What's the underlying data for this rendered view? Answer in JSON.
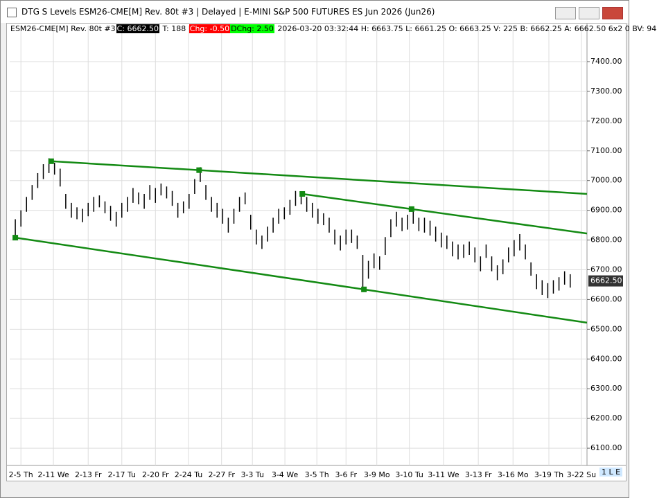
{
  "window": {
    "title": "DTG S Levels ESM26-CME[M]  Rev. 80t #3 | Delayed | E-MINI S&P 500 FUTURES ES Jun 2026 (Jun26)"
  },
  "info": {
    "instrument": "ESM26-CME[M]  Rev. 80t #3",
    "close": "C: 6662.50",
    "ticks": "T: 188",
    "change": "Chg: -0.50",
    "daily_change": "DChg: 2.50",
    "details": "2026-03-20 03:32:44 H: 6663.75 L: 6661.25 O: 6663.25 V: 225 B: 6662.25 A: 6662.50 6x2 0 BV: 94"
  },
  "status": "1 L E",
  "chart_data": {
    "type": "ohlc",
    "color": "#000000",
    "grid": true,
    "xlim": [
      -1,
      102
    ],
    "ylim": [
      6042,
      7521
    ],
    "yticks": [
      {
        "value": 6100,
        "label": "6100.00"
      },
      {
        "value": 6200,
        "label": "6200.00"
      },
      {
        "value": 6300,
        "label": "6300.00"
      },
      {
        "value": 6400,
        "label": "6400.00"
      },
      {
        "value": 6500,
        "label": "6500.00"
      },
      {
        "value": 6600,
        "label": "6600.00"
      },
      {
        "value": 6700,
        "label": "6700.00"
      },
      {
        "value": 6800,
        "label": "6800.00"
      },
      {
        "value": 6900,
        "label": "6900.00"
      },
      {
        "value": 7000,
        "label": "7000.00"
      },
      {
        "value": 7100,
        "label": "7100.00"
      },
      {
        "value": 7200,
        "label": "7200.00"
      },
      {
        "value": 7300,
        "label": "7300.00"
      },
      {
        "value": 7400,
        "label": "7400.00"
      }
    ],
    "xticks": [
      {
        "value": 1,
        "label": "2-5 Th"
      },
      {
        "value": 6.8,
        "label": "2-11 We"
      },
      {
        "value": 13,
        "label": "2-13 Fr"
      },
      {
        "value": 19,
        "label": "2-17 Tu"
      },
      {
        "value": 25,
        "label": "2-20 Fr"
      },
      {
        "value": 30.9,
        "label": "2-24 Tu"
      },
      {
        "value": 36.8,
        "label": "2-27 Fr"
      },
      {
        "value": 42.3,
        "label": "3-3 Tu"
      },
      {
        "value": 48.1,
        "label": "3-4 We"
      },
      {
        "value": 53.8,
        "label": "3-5 Th"
      },
      {
        "value": 59,
        "label": "3-6 Fr"
      },
      {
        "value": 64.5,
        "label": "3-9 Mo"
      },
      {
        "value": 70.3,
        "label": "3-10 Tu"
      },
      {
        "value": 76.4,
        "label": "3-11 We"
      },
      {
        "value": 82.6,
        "label": "3-13 Fr"
      },
      {
        "value": 88.8,
        "label": "3-16 Mo"
      },
      {
        "value": 95.2,
        "label": "3-19 Th"
      },
      {
        "value": 101,
        "label": "3-22 Su"
      }
    ],
    "high": [
      6870,
      6900,
      6945,
      6985,
      7025,
      7055,
      7075,
      7060,
      7040,
      6955,
      6925,
      6910,
      6905,
      6925,
      6945,
      6950,
      6930,
      6915,
      6895,
      6925,
      6945,
      6975,
      6960,
      6955,
      6985,
      6975,
      6990,
      6980,
      6965,
      6925,
      6930,
      6955,
      7005,
      7045,
      6985,
      6945,
      6925,
      6905,
      6875,
      6905,
      6945,
      6960,
      6885,
      6835,
      6815,
      6845,
      6875,
      6905,
      6910,
      6935,
      6965,
      6960,
      6945,
      6925,
      6905,
      6890,
      6875,
      6835,
      6815,
      6835,
      6835,
      6815,
      6750,
      6730,
      6755,
      6745,
      6810,
      6870,
      6895,
      6875,
      6885,
      6905,
      6875,
      6875,
      6865,
      6845,
      6825,
      6815,
      6795,
      6785,
      6785,
      6795,
      6775,
      6745,
      6785,
      6745,
      6715,
      6735,
      6775,
      6800,
      6820,
      6785,
      6725,
      6685,
      6665,
      6655,
      6665,
      6675,
      6695,
      6685
    ],
    "low": [
      6800,
      6845,
      6895,
      6935,
      6975,
      7005,
      7025,
      7020,
      6980,
      6905,
      6875,
      6870,
      6860,
      6880,
      6895,
      6910,
      6890,
      6865,
      6845,
      6875,
      6895,
      6925,
      6920,
      6905,
      6935,
      6925,
      6950,
      6940,
      6915,
      6875,
      6890,
      6905,
      6955,
      6995,
      6935,
      6895,
      6875,
      6855,
      6825,
      6855,
      6895,
      6920,
      6835,
      6785,
      6770,
      6795,
      6825,
      6855,
      6870,
      6885,
      6915,
      6920,
      6895,
      6875,
      6855,
      6850,
      6825,
      6785,
      6765,
      6785,
      6790,
      6770,
      6640,
      6670,
      6705,
      6700,
      6750,
      6810,
      6845,
      6830,
      6835,
      6855,
      6830,
      6825,
      6815,
      6795,
      6775,
      6770,
      6745,
      6735,
      6740,
      6750,
      6725,
      6695,
      6740,
      6695,
      6665,
      6685,
      6725,
      6745,
      6765,
      6735,
      6680,
      6635,
      6615,
      6605,
      6620,
      6630,
      6650,
      6640
    ],
    "trendlines": [
      {
        "color": "#138a13",
        "x": [
          6.4,
          32.8,
          102
        ],
        "y": [
          7065,
          7035,
          6955
        ]
      },
      {
        "color": "#138a13",
        "x": [
          0,
          62.2,
          102
        ],
        "y": [
          6808,
          6634,
          6522
        ]
      },
      {
        "color": "#138a13",
        "x": [
          51.2,
          70.7,
          102
        ],
        "y": [
          6955,
          6904,
          6822
        ]
      }
    ],
    "last_price": {
      "value": 6662.5,
      "label": "6662.50"
    }
  }
}
